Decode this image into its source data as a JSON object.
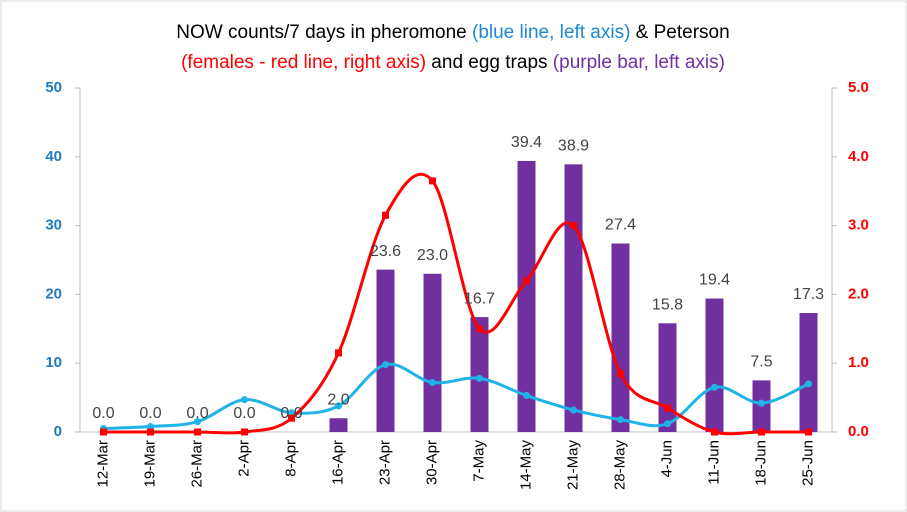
{
  "chart_data": {
    "type": "bar-line",
    "title": [
      [
        {
          "text": "NOW counts/7 days in pheromone ",
          "color": "#000000"
        },
        {
          "text": "(blue line, left axis)",
          "color": "#1e88d2"
        },
        {
          "text": " & Peterson",
          "color": "#000000"
        }
      ],
      [
        {
          "text": "(females - red line, right axis)",
          "color": "#ff0000"
        },
        {
          "text": " and egg traps ",
          "color": "#000000"
        },
        {
          "text": "(purple bar, left axis)",
          "color": "#7030a0"
        }
      ]
    ],
    "categories": [
      "12-Mar",
      "19-Mar",
      "26-Mar",
      "2-Apr",
      "8-Apr",
      "16-Apr",
      "23-Apr",
      "30-Apr",
      "7-May",
      "14-May",
      "21-May",
      "28-May",
      "4-Jun",
      "11-Jun",
      "18-Jun",
      "25-Jun"
    ],
    "series": [
      {
        "name": "egg traps",
        "kind": "bar",
        "color": "#7030a0",
        "axis": "y",
        "values": [
          0,
          0,
          0,
          0,
          0,
          2,
          23.6,
          23,
          16.7,
          39.4,
          38.9,
          27.4,
          15.8,
          19.4,
          7.5,
          17.3
        ],
        "value_labels": [
          "0.0",
          "0.0",
          "0.0",
          "0.0",
          "0.0",
          "2.0",
          "23.6",
          "23.0",
          "16.7",
          "39.4",
          "38.9",
          "27.4",
          "15.8",
          "19.4",
          "7.5",
          "17.3"
        ]
      },
      {
        "name": "pheromone",
        "kind": "line",
        "marker": "circle",
        "color": "#1fb4e8",
        "axis": "y",
        "values": [
          0.5,
          0.8,
          1.5,
          4.7,
          2.8,
          3.8,
          9.8,
          7.2,
          7.8,
          5.3,
          3.2,
          1.8,
          1.2,
          6.5,
          4.2,
          7.0
        ]
      },
      {
        "name": "Peterson females",
        "kind": "line",
        "marker": "square",
        "color": "#ff0000",
        "axis": "y2",
        "values": [
          0,
          0,
          0,
          0,
          0.2,
          1.15,
          3.15,
          3.65,
          1.5,
          2.2,
          3.0,
          0.85,
          0.35,
          0,
          0,
          0
        ]
      }
    ],
    "ylim": [
      0,
      50
    ],
    "yticks": [
      0,
      10,
      20,
      30,
      40,
      50
    ],
    "ytick_color": "#1f7bc1",
    "y2lim": [
      0,
      5
    ],
    "y2ticks": [
      {
        "value": 0,
        "label": "0.0"
      },
      {
        "value": 1,
        "label": "1.0"
      },
      {
        "value": 2,
        "label": "2.0"
      },
      {
        "value": 3,
        "label": "3.0"
      },
      {
        "value": 4,
        "label": "4.0"
      },
      {
        "value": 5,
        "label": "5.0"
      }
    ],
    "y2tick_color": "#ff0000"
  }
}
